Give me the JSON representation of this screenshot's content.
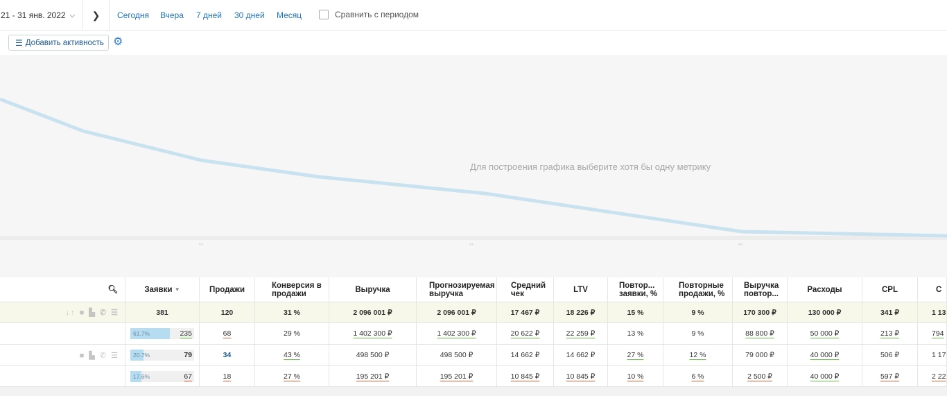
{
  "topbar": {
    "date_range": "21 - 31 янв. 2022",
    "quick_filters": [
      "Сегодня",
      "Вчера",
      "7 дней",
      "30 дней",
      "Месяц"
    ],
    "compare_label": "Сравнить с периодом"
  },
  "toolbar": {
    "add_activity_label": "Добавить активность"
  },
  "chart": {
    "message": "Для построения графика выберите хотя бы одну метрику",
    "line_color": "#c9e2ef"
  },
  "table": {
    "headers": {
      "leads": "Заявки",
      "sales": "Продажи",
      "conversion": "Конверсия в продажи",
      "revenue": "Выручка",
      "forecast_revenue": "Прогнозируемая выручка",
      "avg_check": "Средний чек",
      "ltv": "LTV",
      "repeat_leads": "Повтор... заявки, %",
      "repeat_sales": "Повторные продажи, %",
      "repeat_revenue": "Выручка повтор...",
      "expenses": "Расходы",
      "cpl": "CPL",
      "last": "С"
    },
    "total": {
      "leads": "381",
      "sales": "120",
      "conversion": "31 %",
      "revenue": "2 096 001 ₽",
      "forecast_revenue": "2 096 001 ₽",
      "avg_check": "17 467 ₽",
      "ltv": "18 226 ₽",
      "repeat_leads": "15 %",
      "repeat_sales": "9 %",
      "repeat_revenue": "170 300 ₽",
      "expenses": "130 000 ₽",
      "cpl": "341 ₽",
      "last": "1 13"
    },
    "rows": [
      {
        "leads_pct": "61.7%",
        "leads_share": 0.617,
        "leads": "235",
        "sales": "68",
        "conversion": "29 %",
        "revenue": "1 402 300 ₽",
        "forecast_revenue": "1 402 300 ₽",
        "avg_check": "20 622 ₽",
        "ltv": "22 259 ₽",
        "repeat_leads": "13 %",
        "repeat_sales": "9 %",
        "repeat_revenue": "88 800 ₽",
        "expenses": "50 000 ₽",
        "cpl": "213 ₽",
        "last": "794"
      },
      {
        "leads_pct": "20.7%",
        "leads_share": 0.207,
        "leads": "79",
        "sales": "34",
        "conversion": "43 %",
        "revenue": "498 500 ₽",
        "forecast_revenue": "498 500 ₽",
        "avg_check": "14 662 ₽",
        "ltv": "14 662 ₽",
        "repeat_leads": "27 %",
        "repeat_sales": "12 %",
        "repeat_revenue": "79 000 ₽",
        "expenses": "40 000 ₽",
        "cpl": "506 ₽",
        "last": "1 17"
      },
      {
        "leads_pct": "17.6%",
        "leads_share": 0.176,
        "leads": "67",
        "sales": "18",
        "conversion": "27 %",
        "revenue": "195 201 ₽",
        "forecast_revenue": "195 201 ₽",
        "avg_check": "10 845 ₽",
        "ltv": "10 845 ₽",
        "repeat_leads": "10 %",
        "repeat_sales": "6 %",
        "repeat_revenue": "2 500 ₽",
        "expenses": "40 000 ₽",
        "cpl": "597 ₽",
        "last": "2 22"
      }
    ]
  }
}
